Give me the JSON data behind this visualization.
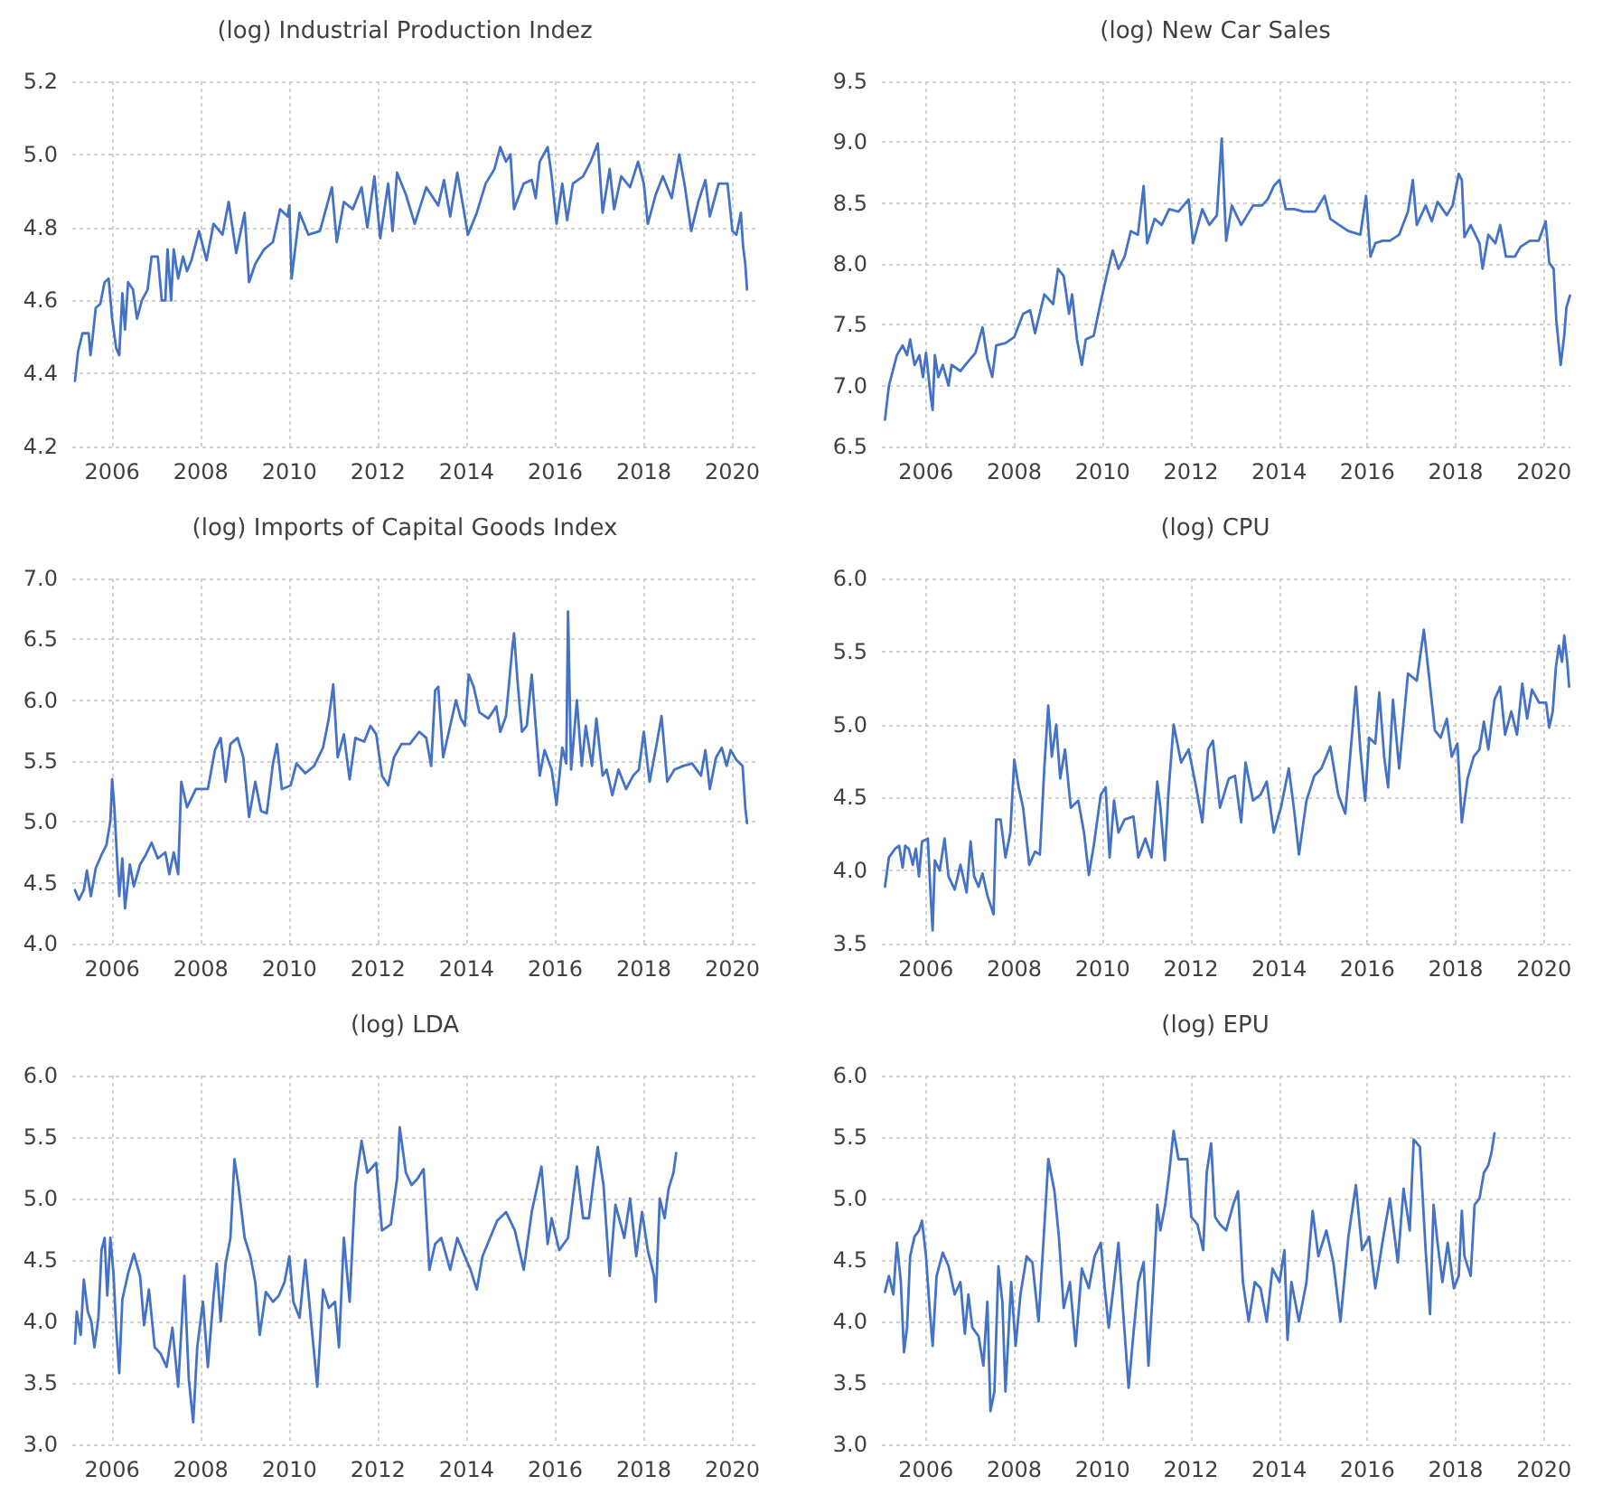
{
  "chart_data": [
    {
      "type": "line",
      "title": "(log) Industrial Production Indez",
      "color": "#4472c4",
      "grid": true,
      "xlim": [
        2005.1,
        2020.6
      ],
      "xticks": [
        2006,
        2008,
        2010,
        2012,
        2014,
        2016,
        2018,
        2020
      ],
      "ylim": [
        4.2,
        5.2
      ],
      "yticks": [
        4.2,
        4.4,
        4.6,
        4.8,
        {
          "value": 5,
          "label": "5.0"
        },
        5.2
      ],
      "x": [
        2005.16,
        2005.23,
        2005.33,
        2005.47,
        2005.51,
        2005.56,
        2005.63,
        2005.73,
        2005.83,
        2005.92,
        2006.0,
        2006.09,
        2006.16,
        2006.23,
        2006.29,
        2006.36,
        2006.47,
        2006.56,
        2006.67,
        2006.8,
        2006.89,
        2007.03,
        2007.12,
        2007.2,
        2007.25,
        2007.33,
        2007.39,
        2007.49,
        2007.6,
        2007.69,
        2007.79,
        2007.96,
        2008.13,
        2008.29,
        2008.49,
        2008.63,
        2008.8,
        2008.99,
        2009.09,
        2009.23,
        2009.43,
        2009.63,
        2009.79,
        2009.96,
        2010.0,
        2010.05,
        2010.23,
        2010.43,
        2010.69,
        2010.96,
        2011.07,
        2011.23,
        2011.43,
        2011.63,
        2011.76,
        2011.92,
        2012.05,
        2012.23,
        2012.33,
        2012.43,
        2012.63,
        2012.83,
        2013.09,
        2013.36,
        2013.49,
        2013.63,
        2013.79,
        2013.89,
        2014.03,
        2014.23,
        2014.43,
        2014.63,
        2014.76,
        2014.89,
        2014.99,
        2015.07,
        2015.29,
        2015.47,
        2015.56,
        2015.65,
        2015.83,
        2015.92,
        2016.03,
        2016.16,
        2016.27,
        2016.4,
        2016.63,
        2016.8,
        2016.96,
        2017.07,
        2017.23,
        2017.33,
        2017.49,
        2017.69,
        2017.87,
        2018.0,
        2018.09,
        2018.27,
        2018.43,
        2018.63,
        2018.8,
        2018.93,
        2019.07,
        2019.23,
        2019.39,
        2019.49,
        2019.69,
        2019.89,
        2020.0,
        2020.09,
        2020.19,
        2020.24,
        2020.29,
        2020.33
      ],
      "values": [
        4.38,
        4.46,
        4.51,
        4.51,
        4.45,
        4.5,
        4.58,
        4.59,
        4.65,
        4.66,
        4.55,
        4.47,
        4.45,
        4.62,
        4.52,
        4.65,
        4.63,
        4.55,
        4.6,
        4.63,
        4.72,
        4.72,
        4.6,
        4.6,
        4.74,
        4.6,
        4.74,
        4.66,
        4.72,
        4.68,
        4.71,
        4.79,
        4.71,
        4.81,
        4.78,
        4.87,
        4.73,
        4.84,
        4.65,
        4.7,
        4.74,
        4.76,
        4.85,
        4.83,
        4.86,
        4.66,
        4.84,
        4.78,
        4.79,
        4.91,
        4.76,
        4.87,
        4.85,
        4.91,
        4.8,
        4.94,
        4.77,
        4.92,
        4.79,
        4.95,
        4.89,
        4.81,
        4.91,
        4.86,
        4.93,
        4.83,
        4.95,
        4.88,
        4.78,
        4.84,
        4.92,
        4.96,
        5.02,
        4.98,
        5.0,
        4.85,
        4.92,
        4.93,
        4.88,
        4.98,
        5.02,
        4.94,
        4.81,
        4.92,
        4.82,
        4.92,
        4.94,
        4.98,
        5.03,
        4.84,
        4.96,
        4.85,
        4.94,
        4.91,
        4.98,
        4.92,
        4.81,
        4.89,
        4.94,
        4.88,
        5.0,
        4.91,
        4.79,
        4.87,
        4.93,
        4.83,
        4.92,
        4.92,
        4.79,
        4.78,
        4.84,
        4.75,
        4.7,
        4.63
      ]
    },
    {
      "type": "line",
      "title": "(log) New Car Sales",
      "color": "#4472c4",
      "grid": true,
      "xlim": [
        2005.0,
        2020.6
      ],
      "xticks": [
        2006,
        2008,
        2010,
        2012,
        2014,
        2016,
        2018,
        2020
      ],
      "ylim": [
        6.5,
        9.5
      ],
      "yticks": [
        6.5,
        {
          "value": 7,
          "label": "7.0"
        },
        7.5,
        {
          "value": 8,
          "label": "8.0"
        },
        8.5,
        {
          "value": 9,
          "label": "9.0"
        },
        9.5
      ],
      "x": [
        2005.07,
        2005.16,
        2005.34,
        2005.47,
        2005.57,
        2005.64,
        2005.74,
        2005.85,
        2005.93,
        2006.0,
        2006.11,
        2006.15,
        2006.2,
        2006.28,
        2006.38,
        2006.51,
        2006.58,
        2006.78,
        2006.96,
        2007.12,
        2007.28,
        2007.39,
        2007.5,
        2007.59,
        2007.8,
        2008.0,
        2008.2,
        2008.36,
        2008.47,
        2008.68,
        2008.88,
        2008.99,
        2009.12,
        2009.24,
        2009.31,
        2009.42,
        2009.53,
        2009.62,
        2009.8,
        2009.96,
        2010.09,
        2010.23,
        2010.36,
        2010.5,
        2010.64,
        2010.8,
        2010.93,
        2011.01,
        2011.18,
        2011.34,
        2011.51,
        2011.72,
        2011.95,
        2012.05,
        2012.26,
        2012.42,
        2012.59,
        2012.7,
        2012.8,
        2012.93,
        2013.14,
        2013.41,
        2013.61,
        2013.74,
        2013.88,
        2014.01,
        2014.15,
        2014.35,
        2014.55,
        2014.82,
        2015.03,
        2015.16,
        2015.36,
        2015.57,
        2015.84,
        2015.97,
        2016.07,
        2016.18,
        2016.34,
        2016.51,
        2016.72,
        2016.92,
        2017.03,
        2017.12,
        2017.32,
        2017.46,
        2017.59,
        2017.8,
        2017.93,
        2018.07,
        2018.14,
        2018.2,
        2018.34,
        2018.54,
        2018.61,
        2018.74,
        2018.9,
        2019.01,
        2019.14,
        2019.34,
        2019.47,
        2019.68,
        2019.88,
        2020.04,
        2020.12,
        2020.22,
        2020.28,
        2020.38,
        2020.46,
        2020.51,
        2020.59
      ],
      "values": [
        6.72,
        7.0,
        7.25,
        7.33,
        7.25,
        7.38,
        7.17,
        7.25,
        7.07,
        7.27,
        6.9,
        6.8,
        7.25,
        7.07,
        7.17,
        7.0,
        7.17,
        7.12,
        7.2,
        7.27,
        7.48,
        7.22,
        7.07,
        7.33,
        7.35,
        7.4,
        7.59,
        7.62,
        7.43,
        7.75,
        7.67,
        7.96,
        7.9,
        7.59,
        7.75,
        7.38,
        7.17,
        7.38,
        7.41,
        7.69,
        7.9,
        8.11,
        7.96,
        8.06,
        8.27,
        8.24,
        8.64,
        8.17,
        8.37,
        8.32,
        8.45,
        8.43,
        8.53,
        8.17,
        8.45,
        8.32,
        8.4,
        9.03,
        8.19,
        8.48,
        8.32,
        8.48,
        8.48,
        8.53,
        8.64,
        8.69,
        8.45,
        8.45,
        8.43,
        8.43,
        8.56,
        8.37,
        8.32,
        8.27,
        8.24,
        8.56,
        8.06,
        8.17,
        8.19,
        8.19,
        8.24,
        8.43,
        8.69,
        8.32,
        8.48,
        8.35,
        8.51,
        8.4,
        8.48,
        8.74,
        8.69,
        8.22,
        8.32,
        8.17,
        7.96,
        8.24,
        8.17,
        8.32,
        8.06,
        8.06,
        8.14,
        8.19,
        8.19,
        8.35,
        8.01,
        7.96,
        7.54,
        7.17,
        7.41,
        7.64,
        7.74
      ]
    },
    {
      "type": "line",
      "title": "(log) Imports of Capital Goods Index",
      "color": "#4472c4",
      "grid": true,
      "xlim": [
        2005.1,
        2020.6
      ],
      "xticks": [
        2006,
        2008,
        2010,
        2012,
        2014,
        2016,
        2018,
        2020
      ],
      "ylim": [
        4.0,
        7.0
      ],
      "yticks": [
        {
          "value": 4,
          "label": "4.0"
        },
        4.5,
        {
          "value": 5,
          "label": "5.0"
        },
        5.5,
        {
          "value": 6,
          "label": "6.0"
        },
        6.5,
        {
          "value": 7,
          "label": "7.0"
        }
      ],
      "x": [
        2005.16,
        2005.25,
        2005.36,
        2005.43,
        2005.52,
        2005.63,
        2005.76,
        2005.87,
        2005.96,
        2006.0,
        2006.05,
        2006.11,
        2006.16,
        2006.23,
        2006.29,
        2006.4,
        2006.49,
        2006.63,
        2006.76,
        2006.89,
        2007.03,
        2007.2,
        2007.29,
        2007.39,
        2007.49,
        2007.56,
        2007.69,
        2007.89,
        2008.05,
        2008.16,
        2008.32,
        2008.45,
        2008.56,
        2008.67,
        2008.83,
        2008.96,
        2009.09,
        2009.23,
        2009.36,
        2009.49,
        2009.63,
        2009.72,
        2009.83,
        2010.03,
        2010.16,
        2010.36,
        2010.56,
        2010.76,
        2010.89,
        2010.99,
        2011.09,
        2011.23,
        2011.36,
        2011.49,
        2011.69,
        2011.83,
        2011.96,
        2012.09,
        2012.23,
        2012.36,
        2012.53,
        2012.72,
        2012.93,
        2013.09,
        2013.2,
        2013.29,
        2013.36,
        2013.47,
        2013.63,
        2013.76,
        2013.87,
        2013.96,
        2014.05,
        2014.16,
        2014.29,
        2014.49,
        2014.67,
        2014.76,
        2014.89,
        2015.03,
        2015.07,
        2015.16,
        2015.25,
        2015.36,
        2015.47,
        2015.56,
        2015.65,
        2015.76,
        2015.92,
        2016.03,
        2016.16,
        2016.25,
        2016.29,
        2016.36,
        2016.49,
        2016.6,
        2016.69,
        2016.83,
        2016.93,
        2017.07,
        2017.16,
        2017.29,
        2017.43,
        2017.6,
        2017.76,
        2017.89,
        2018.0,
        2018.13,
        2018.29,
        2018.4,
        2018.53,
        2018.69,
        2018.89,
        2019.09,
        2019.29,
        2019.39,
        2019.49,
        2019.63,
        2019.76,
        2019.87,
        2019.96,
        2020.09,
        2020.23,
        2020.29,
        2020.33
      ],
      "values": [
        4.44,
        4.36,
        4.44,
        4.6,
        4.39,
        4.62,
        4.73,
        4.81,
        5.01,
        5.35,
        5.12,
        4.7,
        4.39,
        4.7,
        4.29,
        4.65,
        4.47,
        4.65,
        4.73,
        4.83,
        4.7,
        4.75,
        4.57,
        4.75,
        4.57,
        5.33,
        5.12,
        5.27,
        5.27,
        5.27,
        5.59,
        5.69,
        5.33,
        5.64,
        5.69,
        5.53,
        5.04,
        5.33,
        5.09,
        5.07,
        5.48,
        5.64,
        5.27,
        5.3,
        5.48,
        5.4,
        5.46,
        5.61,
        5.85,
        6.13,
        5.53,
        5.72,
        5.35,
        5.69,
        5.66,
        5.79,
        5.72,
        5.38,
        5.3,
        5.53,
        5.64,
        5.64,
        5.74,
        5.69,
        5.46,
        6.08,
        6.11,
        5.53,
        5.79,
        6.0,
        5.85,
        5.79,
        6.21,
        6.11,
        5.9,
        5.85,
        5.95,
        5.74,
        5.87,
        6.42,
        6.55,
        6.11,
        5.74,
        5.79,
        6.21,
        5.79,
        5.38,
        5.59,
        5.43,
        5.14,
        5.61,
        5.48,
        6.73,
        5.43,
        6.0,
        5.46,
        5.79,
        5.46,
        5.85,
        5.38,
        5.43,
        5.22,
        5.43,
        5.27,
        5.38,
        5.43,
        5.74,
        5.33,
        5.64,
        5.87,
        5.33,
        5.43,
        5.46,
        5.48,
        5.38,
        5.59,
        5.27,
        5.53,
        5.61,
        5.46,
        5.59,
        5.51,
        5.46,
        5.12,
        4.99
      ]
    },
    {
      "type": "line",
      "title": "(log) CPU",
      "color": "#4472c4",
      "grid": true,
      "xlim": [
        2005.0,
        2020.6
      ],
      "xticks": [
        2006,
        2008,
        2010,
        2012,
        2014,
        2016,
        2018,
        2020
      ],
      "ylim": [
        3.5,
        6.0
      ],
      "yticks": [
        3.5,
        {
          "value": 4,
          "label": "4.0"
        },
        4.5,
        {
          "value": 5,
          "label": "5.0"
        },
        5.5,
        {
          "value": 6,
          "label": "6.0"
        }
      ],
      "x": [
        2005.07,
        2005.16,
        2005.3,
        2005.39,
        2005.47,
        2005.53,
        2005.61,
        2005.7,
        2005.77,
        2005.84,
        2005.91,
        2006.04,
        2006.11,
        2006.15,
        2006.2,
        2006.31,
        2006.42,
        2006.51,
        2006.65,
        2006.78,
        2006.92,
        2007.01,
        2007.09,
        2007.19,
        2007.28,
        2007.39,
        2007.53,
        2007.59,
        2007.69,
        2007.8,
        2007.91,
        2008.0,
        2008.1,
        2008.2,
        2008.34,
        2008.47,
        2008.58,
        2008.68,
        2008.77,
        2008.85,
        2008.95,
        2009.04,
        2009.15,
        2009.28,
        2009.45,
        2009.58,
        2009.69,
        2009.8,
        2009.96,
        2010.07,
        2010.16,
        2010.26,
        2010.36,
        2010.5,
        2010.7,
        2010.81,
        2010.97,
        2011.11,
        2011.24,
        2011.31,
        2011.41,
        2011.49,
        2011.61,
        2011.78,
        2011.95,
        2012.12,
        2012.26,
        2012.39,
        2012.5,
        2012.66,
        2012.86,
        2013.0,
        2013.14,
        2013.24,
        2013.41,
        2013.58,
        2013.72,
        2013.88,
        2014.04,
        2014.22,
        2014.35,
        2014.45,
        2014.62,
        2014.8,
        2014.96,
        2015.16,
        2015.34,
        2015.5,
        2015.66,
        2015.74,
        2015.84,
        2015.95,
        2016.04,
        2016.18,
        2016.27,
        2016.38,
        2016.47,
        2016.58,
        2016.72,
        2016.92,
        2017.12,
        2017.28,
        2017.39,
        2017.53,
        2017.66,
        2017.8,
        2017.91,
        2018.04,
        2018.14,
        2018.27,
        2018.41,
        2018.54,
        2018.64,
        2018.74,
        2018.88,
        2019.01,
        2019.12,
        2019.26,
        2019.39,
        2019.51,
        2019.62,
        2019.73,
        2019.89,
        2020.05,
        2020.12,
        2020.2,
        2020.27,
        2020.34,
        2020.41,
        2020.46,
        2020.53,
        2020.57
      ],
      "values": [
        3.89,
        4.09,
        4.15,
        4.17,
        4.02,
        4.17,
        4.15,
        4.04,
        4.15,
        3.96,
        4.2,
        4.22,
        3.8,
        3.59,
        4.07,
        4.0,
        4.22,
        3.96,
        3.87,
        4.04,
        3.85,
        4.2,
        3.96,
        3.89,
        3.98,
        3.83,
        3.7,
        4.35,
        4.35,
        4.09,
        4.26,
        4.76,
        4.57,
        4.43,
        4.04,
        4.13,
        4.11,
        4.7,
        5.13,
        4.78,
        5.0,
        4.63,
        4.83,
        4.43,
        4.48,
        4.26,
        3.97,
        4.17,
        4.52,
        4.57,
        4.09,
        4.48,
        4.26,
        4.35,
        4.37,
        4.09,
        4.22,
        4.09,
        4.61,
        4.43,
        4.07,
        4.52,
        5.0,
        4.74,
        4.83,
        4.57,
        4.33,
        4.83,
        4.89,
        4.43,
        4.63,
        4.65,
        4.33,
        4.74,
        4.48,
        4.52,
        4.61,
        4.26,
        4.43,
        4.7,
        4.39,
        4.11,
        4.48,
        4.65,
        4.7,
        4.85,
        4.52,
        4.39,
        4.96,
        5.26,
        4.83,
        4.48,
        4.91,
        4.87,
        5.22,
        4.78,
        4.57,
        5.17,
        4.7,
        5.35,
        5.3,
        5.65,
        5.35,
        4.96,
        4.91,
        5.04,
        4.78,
        4.87,
        4.33,
        4.63,
        4.78,
        4.83,
        5.02,
        4.83,
        5.17,
        5.26,
        4.93,
        5.09,
        4.93,
        5.28,
        5.04,
        5.24,
        5.15,
        5.15,
        4.98,
        5.09,
        5.39,
        5.54,
        5.43,
        5.61,
        5.43,
        5.26
      ]
    },
    {
      "type": "line",
      "title": "(log) LDA",
      "color": "#4472c4",
      "grid": true,
      "xlim": [
        2005.1,
        2020.6
      ],
      "xticks": [
        2006,
        2008,
        2010,
        2012,
        2014,
        2016,
        2018,
        2020
      ],
      "ylim": [
        3.0,
        6.0
      ],
      "yticks": [
        {
          "value": 3,
          "label": "3.0"
        },
        3.5,
        {
          "value": 4,
          "label": "4.0"
        },
        4.5,
        {
          "value": 5,
          "label": "5.0"
        },
        5.5,
        {
          "value": 6,
          "label": "6.0"
        }
      ],
      "x": [
        2005.16,
        2005.2,
        2005.29,
        2005.36,
        2005.45,
        2005.53,
        2005.6,
        2005.69,
        2005.76,
        2005.83,
        2005.89,
        2005.96,
        2006.03,
        2006.09,
        2006.16,
        2006.23,
        2006.36,
        2006.49,
        2006.63,
        2006.72,
        2006.83,
        2006.96,
        2007.09,
        2007.23,
        2007.36,
        2007.49,
        2007.63,
        2007.73,
        2007.83,
        2007.92,
        2008.05,
        2008.16,
        2008.29,
        2008.36,
        2008.45,
        2008.56,
        2008.67,
        2008.76,
        2008.85,
        2008.99,
        2009.12,
        2009.23,
        2009.33,
        2009.47,
        2009.63,
        2009.76,
        2009.89,
        2010.0,
        2010.09,
        2010.23,
        2010.36,
        2010.49,
        2010.63,
        2010.76,
        2010.89,
        2011.03,
        2011.12,
        2011.23,
        2011.36,
        2011.49,
        2011.63,
        2011.76,
        2011.96,
        2012.09,
        2012.29,
        2012.43,
        2012.49,
        2012.63,
        2012.76,
        2012.89,
        2013.03,
        2013.16,
        2013.29,
        2013.43,
        2013.63,
        2013.79,
        2013.96,
        2014.09,
        2014.23,
        2014.36,
        2014.53,
        2014.69,
        2014.89,
        2015.09,
        2015.29,
        2015.47,
        2015.69,
        2015.83,
        2015.92,
        2016.09,
        2016.29,
        2016.49,
        2016.63,
        2016.76,
        2016.96,
        2017.09,
        2017.23,
        2017.36,
        2017.56,
        2017.69,
        2017.83,
        2017.96,
        2018.09,
        2018.23,
        2018.27,
        2018.36,
        2018.47,
        2018.56,
        2018.67,
        2018.73
      ],
      "values": [
        3.82,
        4.08,
        3.89,
        4.34,
        4.08,
        4.0,
        3.79,
        4.03,
        4.58,
        4.68,
        4.21,
        4.68,
        4.39,
        3.95,
        3.58,
        4.18,
        4.39,
        4.55,
        4.37,
        3.97,
        4.26,
        3.79,
        3.74,
        3.63,
        3.95,
        3.47,
        4.37,
        3.53,
        3.18,
        3.79,
        4.16,
        3.63,
        4.21,
        4.47,
        4.0,
        4.47,
        4.68,
        5.32,
        5.11,
        4.68,
        4.53,
        4.32,
        3.89,
        4.24,
        4.16,
        4.21,
        4.32,
        4.53,
        4.16,
        4.03,
        4.5,
        4.0,
        3.47,
        4.26,
        4.11,
        4.16,
        3.79,
        4.68,
        4.16,
        5.11,
        5.47,
        5.21,
        5.29,
        4.74,
        4.79,
        5.16,
        5.58,
        5.21,
        5.11,
        5.16,
        5.24,
        4.42,
        4.63,
        4.68,
        4.42,
        4.68,
        4.53,
        4.42,
        4.26,
        4.53,
        4.68,
        4.82,
        4.89,
        4.74,
        4.42,
        4.89,
        5.26,
        4.63,
        4.84,
        4.58,
        4.68,
        5.26,
        4.84,
        4.84,
        5.42,
        5.11,
        4.37,
        4.95,
        4.68,
        5.0,
        4.53,
        4.89,
        4.58,
        4.37,
        4.16,
        5.0,
        4.84,
        5.08,
        5.21,
        5.37
      ]
    },
    {
      "type": "line",
      "title": "(log) EPU",
      "color": "#4472c4",
      "grid": true,
      "xlim": [
        2005.0,
        2020.6
      ],
      "xticks": [
        2006,
        2008,
        2010,
        2012,
        2014,
        2016,
        2018,
        2020
      ],
      "ylim": [
        3.0,
        6.0
      ],
      "yticks": [
        {
          "value": 3,
          "label": "3.0"
        },
        3.5,
        {
          "value": 4,
          "label": "4.0"
        },
        4.5,
        {
          "value": 5,
          "label": "5.0"
        },
        5.5,
        {
          "value": 6,
          "label": "6.0"
        }
      ],
      "x": [
        2005.07,
        2005.16,
        2005.26,
        2005.34,
        2005.43,
        2005.5,
        2005.57,
        2005.64,
        2005.74,
        2005.84,
        2005.91,
        2006.0,
        2006.08,
        2006.15,
        2006.24,
        2006.38,
        2006.51,
        2006.65,
        2006.78,
        2006.88,
        2006.96,
        2007.05,
        2007.19,
        2007.3,
        2007.39,
        2007.46,
        2007.55,
        2007.64,
        2007.73,
        2007.8,
        2007.93,
        2008.03,
        2008.14,
        2008.28,
        2008.41,
        2008.55,
        2008.64,
        2008.72,
        2008.77,
        2008.91,
        2009.01,
        2009.12,
        2009.26,
        2009.39,
        2009.53,
        2009.69,
        2009.82,
        2009.96,
        2010.05,
        2010.14,
        2010.26,
        2010.36,
        2010.47,
        2010.59,
        2010.7,
        2010.81,
        2010.93,
        2011.04,
        2011.15,
        2011.24,
        2011.31,
        2011.42,
        2011.51,
        2011.61,
        2011.72,
        2011.92,
        2012.01,
        2012.15,
        2012.28,
        2012.36,
        2012.46,
        2012.55,
        2012.66,
        2012.8,
        2012.96,
        2013.07,
        2013.18,
        2013.31,
        2013.45,
        2013.58,
        2013.72,
        2013.85,
        2014.01,
        2014.12,
        2014.19,
        2014.28,
        2014.45,
        2014.62,
        2014.76,
        2014.89,
        2015.07,
        2015.23,
        2015.39,
        2015.57,
        2015.74,
        2015.88,
        2016.04,
        2016.18,
        2016.34,
        2016.51,
        2016.69,
        2016.82,
        2016.96,
        2017.05,
        2017.19,
        2017.32,
        2017.42,
        2017.5,
        2017.59,
        2017.7,
        2017.82,
        2017.96,
        2018.07,
        2018.14,
        2018.2,
        2018.34,
        2018.43,
        2018.54,
        2018.64,
        2018.74,
        2018.81,
        2018.88
      ],
      "values": [
        4.24,
        4.37,
        4.22,
        4.64,
        4.32,
        3.75,
        3.95,
        4.53,
        4.69,
        4.74,
        4.82,
        4.53,
        4.11,
        3.8,
        4.37,
        4.56,
        4.45,
        4.22,
        4.32,
        3.9,
        4.22,
        3.95,
        3.88,
        3.64,
        4.16,
        3.27,
        3.43,
        4.45,
        4.16,
        3.43,
        4.32,
        3.8,
        4.22,
        4.53,
        4.48,
        4.0,
        4.53,
        5.0,
        5.32,
        5.06,
        4.69,
        4.11,
        4.32,
        3.8,
        4.43,
        4.27,
        4.53,
        4.64,
        4.27,
        3.95,
        4.32,
        4.64,
        4.06,
        3.46,
        3.9,
        4.32,
        4.48,
        3.64,
        4.32,
        4.95,
        4.74,
        4.95,
        5.21,
        5.55,
        5.32,
        5.32,
        4.85,
        4.79,
        4.58,
        5.21,
        5.45,
        4.85,
        4.79,
        4.74,
        4.95,
        5.06,
        4.32,
        4.0,
        4.32,
        4.27,
        4.0,
        4.43,
        4.32,
        4.58,
        3.85,
        4.32,
        4.0,
        4.32,
        4.9,
        4.53,
        4.74,
        4.48,
        4.0,
        4.69,
        5.11,
        4.58,
        4.69,
        4.27,
        4.64,
        5.0,
        4.48,
        5.08,
        4.74,
        5.48,
        5.42,
        4.58,
        4.06,
        4.95,
        4.64,
        4.32,
        4.64,
        4.27,
        4.37,
        4.9,
        4.53,
        4.37,
        4.95,
        5.0,
        5.21,
        5.27,
        5.37,
        5.53
      ]
    }
  ]
}
